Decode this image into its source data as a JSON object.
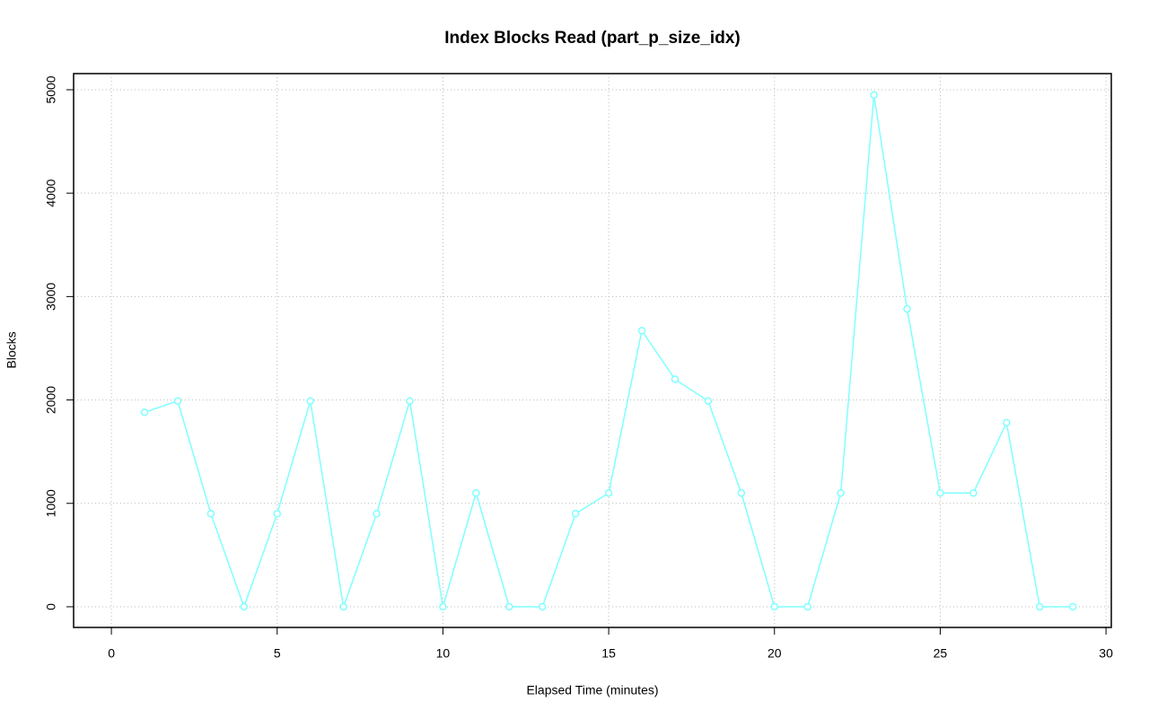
{
  "chart_data": {
    "type": "line",
    "title": "Index Blocks Read (part_p_size_idx)",
    "x_label": "Elapsed Time (minutes)",
    "y_label": "Blocks",
    "x": [
      1,
      2,
      3,
      4,
      5,
      6,
      7,
      8,
      9,
      10,
      11,
      12,
      13,
      14,
      15,
      16,
      17,
      18,
      19,
      20,
      21,
      22,
      23,
      24,
      25,
      26,
      27,
      28,
      29
    ],
    "series": [
      {
        "name": "Blocks",
        "color": "#80ffff",
        "values": [
          1880,
          1990,
          900,
          0,
          900,
          1990,
          0,
          900,
          1990,
          0,
          1100,
          0,
          0,
          900,
          1100,
          2670,
          2200,
          1990,
          1100,
          0,
          0,
          1100,
          4950,
          2880,
          1100,
          1100,
          1780,
          0,
          0
        ]
      }
    ],
    "xlim": [
      -1.14,
      30.16
    ],
    "xticks": [
      0,
      5,
      10,
      15,
      20,
      25,
      30
    ],
    "ylim": [
      -200,
      5156
    ],
    "yticks": [
      0,
      1000,
      2000,
      3000,
      4000,
      5000
    ],
    "grid": true
  }
}
